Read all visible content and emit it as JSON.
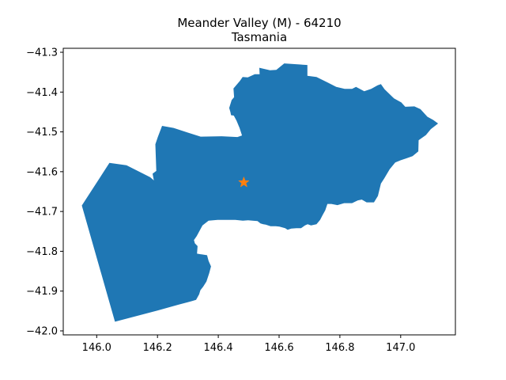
{
  "title_line1": "Meander Valley (M) - 64210",
  "title_line2": "Tasmania",
  "chart_data": {
    "type": "map",
    "title": "Meander Valley (M) - 64210\nTasmania",
    "xlim": [
      145.89,
      147.18
    ],
    "ylim": [
      -42.01,
      -41.29
    ],
    "x_ticks": [
      {
        "value": 146.0,
        "label": "146.0"
      },
      {
        "value": 146.2,
        "label": "146.2"
      },
      {
        "value": 146.4,
        "label": "146.4"
      },
      {
        "value": 146.6,
        "label": "146.6"
      },
      {
        "value": 146.8,
        "label": "146.8"
      },
      {
        "value": 147.0,
        "label": "147.0"
      }
    ],
    "y_ticks": [
      {
        "value": -41.3,
        "label": "−41.3"
      },
      {
        "value": -41.4,
        "label": "−41.4"
      },
      {
        "value": -41.5,
        "label": "−41.5"
      },
      {
        "value": -41.6,
        "label": "−41.6"
      },
      {
        "value": -41.7,
        "label": "−41.7"
      },
      {
        "value": -41.8,
        "label": "−41.8"
      },
      {
        "value": -41.9,
        "label": "−41.9"
      },
      {
        "value": -42.0,
        "label": "−42.0"
      }
    ],
    "region": {
      "color": "#1f77b4",
      "boundary": [
        [
          145.951,
          -41.685
        ],
        [
          146.042,
          -41.578
        ],
        [
          146.098,
          -41.584
        ],
        [
          146.176,
          -41.614
        ],
        [
          146.188,
          -41.622
        ],
        [
          146.184,
          -41.605
        ],
        [
          146.196,
          -41.598
        ],
        [
          146.193,
          -41.531
        ],
        [
          146.201,
          -41.513
        ],
        [
          146.215,
          -41.485
        ],
        [
          146.253,
          -41.49
        ],
        [
          146.301,
          -41.502
        ],
        [
          146.342,
          -41.512
        ],
        [
          146.411,
          -41.511
        ],
        [
          146.463,
          -41.513
        ],
        [
          146.478,
          -41.509
        ],
        [
          146.47,
          -41.49
        ],
        [
          146.46,
          -41.472
        ],
        [
          146.451,
          -41.459
        ],
        [
          146.442,
          -41.458
        ],
        [
          146.44,
          -41.451
        ],
        [
          146.436,
          -41.44
        ],
        [
          146.444,
          -41.42
        ],
        [
          146.452,
          -41.413
        ],
        [
          146.45,
          -41.391
        ],
        [
          146.471,
          -41.372
        ],
        [
          146.48,
          -41.362
        ],
        [
          146.497,
          -41.363
        ],
        [
          146.52,
          -41.355
        ],
        [
          146.536,
          -41.355
        ],
        [
          146.535,
          -41.339
        ],
        [
          146.57,
          -41.345
        ],
        [
          146.591,
          -41.344
        ],
        [
          146.617,
          -41.328
        ],
        [
          146.693,
          -41.332
        ],
        [
          146.693,
          -41.359
        ],
        [
          146.723,
          -41.362
        ],
        [
          146.76,
          -41.376
        ],
        [
          146.788,
          -41.387
        ],
        [
          146.816,
          -41.392
        ],
        [
          146.84,
          -41.392
        ],
        [
          146.853,
          -41.387
        ],
        [
          146.88,
          -41.398
        ],
        [
          146.903,
          -41.392
        ],
        [
          146.924,
          -41.383
        ],
        [
          146.935,
          -41.38
        ],
        [
          146.947,
          -41.393
        ],
        [
          146.978,
          -41.416
        ],
        [
          147.002,
          -41.426
        ],
        [
          147.015,
          -41.437
        ],
        [
          147.045,
          -41.436
        ],
        [
          147.065,
          -41.443
        ],
        [
          147.088,
          -41.462
        ],
        [
          147.107,
          -41.47
        ],
        [
          147.123,
          -41.479
        ],
        [
          147.099,
          -41.493
        ],
        [
          147.083,
          -41.508
        ],
        [
          147.059,
          -41.521
        ],
        [
          147.058,
          -41.549
        ],
        [
          147.039,
          -41.561
        ],
        [
          147.017,
          -41.567
        ],
        [
          147.001,
          -41.571
        ],
        [
          146.982,
          -41.577
        ],
        [
          146.964,
          -41.594
        ],
        [
          146.946,
          -41.617
        ],
        [
          146.935,
          -41.63
        ],
        [
          146.925,
          -41.661
        ],
        [
          146.912,
          -41.677
        ],
        [
          146.888,
          -41.677
        ],
        [
          146.872,
          -41.67
        ],
        [
          146.859,
          -41.672
        ],
        [
          146.84,
          -41.679
        ],
        [
          146.814,
          -41.679
        ],
        [
          146.792,
          -41.684
        ],
        [
          146.772,
          -41.681
        ],
        [
          146.759,
          -41.681
        ],
        [
          146.752,
          -41.697
        ],
        [
          146.743,
          -41.709
        ],
        [
          146.735,
          -41.721
        ],
        [
          146.723,
          -41.732
        ],
        [
          146.705,
          -41.735
        ],
        [
          146.694,
          -41.732
        ],
        [
          146.685,
          -41.735
        ],
        [
          146.672,
          -41.742
        ],
        [
          146.657,
          -41.742
        ],
        [
          146.64,
          -41.743
        ],
        [
          146.628,
          -41.746
        ],
        [
          146.62,
          -41.742
        ],
        [
          146.601,
          -41.738
        ],
        [
          146.589,
          -41.737
        ],
        [
          146.572,
          -41.737
        ],
        [
          146.556,
          -41.733
        ],
        [
          146.548,
          -41.732
        ],
        [
          146.539,
          -41.73
        ],
        [
          146.529,
          -41.724
        ],
        [
          146.513,
          -41.723
        ],
        [
          146.498,
          -41.722
        ],
        [
          146.481,
          -41.723
        ],
        [
          146.456,
          -41.721
        ],
        [
          146.398,
          -41.721
        ],
        [
          146.368,
          -41.723
        ],
        [
          146.348,
          -41.735
        ],
        [
          146.329,
          -41.762
        ],
        [
          146.32,
          -41.772
        ],
        [
          146.323,
          -41.78
        ],
        [
          146.332,
          -41.787
        ],
        [
          146.33,
          -41.806
        ],
        [
          146.363,
          -41.81
        ],
        [
          146.368,
          -41.824
        ],
        [
          146.376,
          -41.838
        ],
        [
          146.37,
          -41.855
        ],
        [
          146.361,
          -41.876
        ],
        [
          146.35,
          -41.889
        ],
        [
          146.341,
          -41.898
        ],
        [
          146.337,
          -41.908
        ],
        [
          146.327,
          -41.922
        ],
        [
          146.314,
          -41.925
        ],
        [
          146.27,
          -41.934
        ],
        [
          146.2,
          -41.949
        ],
        [
          146.06,
          -41.977
        ],
        [
          145.951,
          -41.685
        ]
      ]
    },
    "marker": {
      "type": "star",
      "lon": 146.484,
      "lat": -41.627,
      "color": "#ff7f0e"
    }
  }
}
